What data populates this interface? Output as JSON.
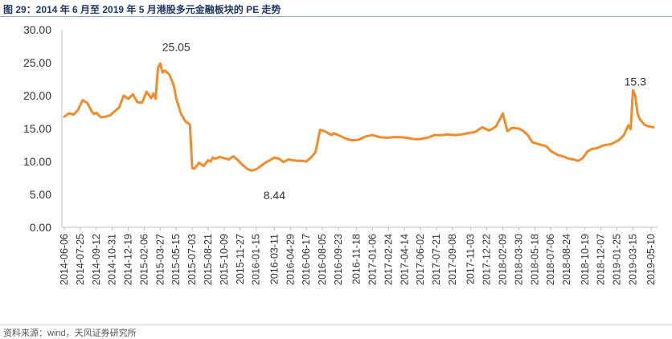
{
  "figure": {
    "title": "图 29：2014 年 6 月至 2019 年 5 月港股多元金融板块的 PE 走势",
    "source": "资料来源：wind，天风证券研究所"
  },
  "chart_data": {
    "type": "line",
    "ylim": [
      0,
      30
    ],
    "yticks": [
      "0.00",
      "5.00",
      "10.00",
      "15.00",
      "20.00",
      "25.00",
      "30.00"
    ],
    "x_tick_labels": [
      "2014-06-06",
      "2014-07-25",
      "2014-09-12",
      "2014-10-31",
      "2014-12-19",
      "2015-02-06",
      "2015-03-27",
      "2015-05-15",
      "2015-07-03",
      "2015-08-21",
      "2015-10-09",
      "2015-11-27",
      "2016-01-15",
      "2016-03-11",
      "2016-04-29",
      "2016-06-17",
      "2016-08-05",
      "2016-09-23",
      "2016-11-18",
      "2017-01-06",
      "2017-02-24",
      "2017-04-14",
      "2017-06-02",
      "2017-07-21",
      "2017-09-08",
      "2017-11-03",
      "2017-12-22",
      "2018-02-09",
      "2018-03-30",
      "2018-05-18",
      "2018-07-06",
      "2018-08-24",
      "2018-10-19",
      "2018-12-07",
      "2019-01-25",
      "2019-03-15",
      "2019-05-10"
    ],
    "series": [
      {
        "color": "#f08c2a",
        "x": [
          "2014-06-06",
          "2014-06-20",
          "2014-07-04",
          "2014-07-18",
          "2014-08-01",
          "2014-08-15",
          "2014-08-29",
          "2014-09-05",
          "2014-09-12",
          "2014-09-26",
          "2014-10-10",
          "2014-10-24",
          "2014-11-07",
          "2014-11-21",
          "2014-12-05",
          "2014-12-19",
          "2015-01-02",
          "2015-01-16",
          "2015-01-30",
          "2015-02-13",
          "2015-02-27",
          "2015-03-06",
          "2015-03-13",
          "2015-03-20",
          "2015-03-27",
          "2015-04-03",
          "2015-04-10",
          "2015-04-17",
          "2015-04-24",
          "2015-05-01",
          "2015-05-08",
          "2015-05-15",
          "2015-05-29",
          "2015-06-12",
          "2015-06-26",
          "2015-07-03",
          "2015-07-10",
          "2015-07-24",
          "2015-08-07",
          "2015-08-21",
          "2015-08-28",
          "2015-09-04",
          "2015-09-11",
          "2015-09-25",
          "2015-10-09",
          "2015-10-23",
          "2015-11-06",
          "2015-11-20",
          "2015-12-04",
          "2015-12-18",
          "2016-01-01",
          "2016-01-15",
          "2016-01-29",
          "2016-02-12",
          "2016-02-26",
          "2016-03-11",
          "2016-03-25",
          "2016-04-08",
          "2016-04-22",
          "2016-05-06",
          "2016-05-20",
          "2016-06-03",
          "2016-06-17",
          "2016-07-01",
          "2016-07-15",
          "2016-07-29",
          "2016-08-12",
          "2016-08-26",
          "2016-09-02",
          "2016-09-09",
          "2016-09-23",
          "2016-10-14",
          "2016-11-04",
          "2016-11-25",
          "2016-12-16",
          "2017-01-06",
          "2017-01-27",
          "2017-02-17",
          "2017-03-10",
          "2017-03-31",
          "2017-04-21",
          "2017-05-12",
          "2017-06-02",
          "2017-06-23",
          "2017-07-14",
          "2017-08-04",
          "2017-08-25",
          "2017-09-15",
          "2017-10-06",
          "2017-10-27",
          "2017-11-17",
          "2017-12-08",
          "2017-12-29",
          "2018-01-19",
          "2018-02-02",
          "2018-02-09",
          "2018-02-23",
          "2018-03-09",
          "2018-03-30",
          "2018-04-13",
          "2018-04-27",
          "2018-05-11",
          "2018-06-01",
          "2018-06-22",
          "2018-07-06",
          "2018-07-27",
          "2018-08-17",
          "2018-08-31",
          "2018-09-14",
          "2018-09-28",
          "2018-10-12",
          "2018-10-26",
          "2018-11-09",
          "2018-11-23",
          "2018-12-07",
          "2018-12-21",
          "2019-01-04",
          "2019-01-18",
          "2019-02-01",
          "2019-02-15",
          "2019-03-01",
          "2019-03-08",
          "2019-03-15",
          "2019-03-22",
          "2019-03-29",
          "2019-04-05",
          "2019-04-19",
          "2019-05-03",
          "2019-05-17"
        ],
        "values": [
          16.8,
          17.3,
          17.1,
          17.8,
          19.3,
          18.9,
          17.6,
          17.2,
          17.4,
          16.7,
          16.8,
          17.0,
          17.6,
          18.2,
          20.0,
          19.5,
          20.2,
          19.0,
          18.9,
          20.6,
          19.6,
          20.3,
          19.5,
          24.2,
          24.9,
          23.5,
          23.8,
          23.5,
          23.2,
          22.4,
          21.4,
          19.6,
          17.3,
          16.1,
          15.6,
          9.0,
          8.9,
          9.8,
          9.3,
          10.2,
          10.0,
          10.6,
          10.4,
          10.7,
          10.5,
          10.3,
          10.8,
          10.2,
          9.5,
          8.9,
          8.6,
          8.8,
          9.3,
          9.8,
          10.2,
          10.6,
          10.4,
          9.9,
          10.3,
          10.2,
          10.1,
          10.1,
          10.0,
          10.6,
          11.4,
          14.8,
          14.6,
          14.2,
          14.0,
          14.3,
          14.0,
          13.5,
          13.2,
          13.3,
          13.8,
          14.0,
          13.7,
          13.6,
          13.7,
          13.7,
          13.6,
          13.4,
          13.4,
          13.6,
          14.0,
          14.0,
          14.1,
          14.0,
          14.1,
          14.3,
          14.5,
          15.2,
          14.7,
          15.3,
          16.6,
          17.3,
          14.6,
          15.1,
          15.0,
          14.6,
          14.0,
          12.9,
          12.6,
          12.3,
          11.6,
          11.0,
          10.7,
          10.4,
          10.3,
          10.1,
          10.5,
          11.5,
          11.9,
          12.0,
          12.3,
          12.5,
          12.6,
          12.9,
          13.3,
          14.0,
          15.5,
          14.9,
          20.8,
          20.0,
          17.3,
          16.4,
          15.6,
          15.3,
          15.2
        ]
      }
    ],
    "annotations": [
      {
        "text": "25.05",
        "x": "2015-05-15",
        "y": 25.05
      },
      {
        "text": "8.44",
        "x": "2016-03-11",
        "y": 8.44
      },
      {
        "text": "15.3",
        "x": "2019-03-22",
        "y": 15.3
      }
    ]
  }
}
